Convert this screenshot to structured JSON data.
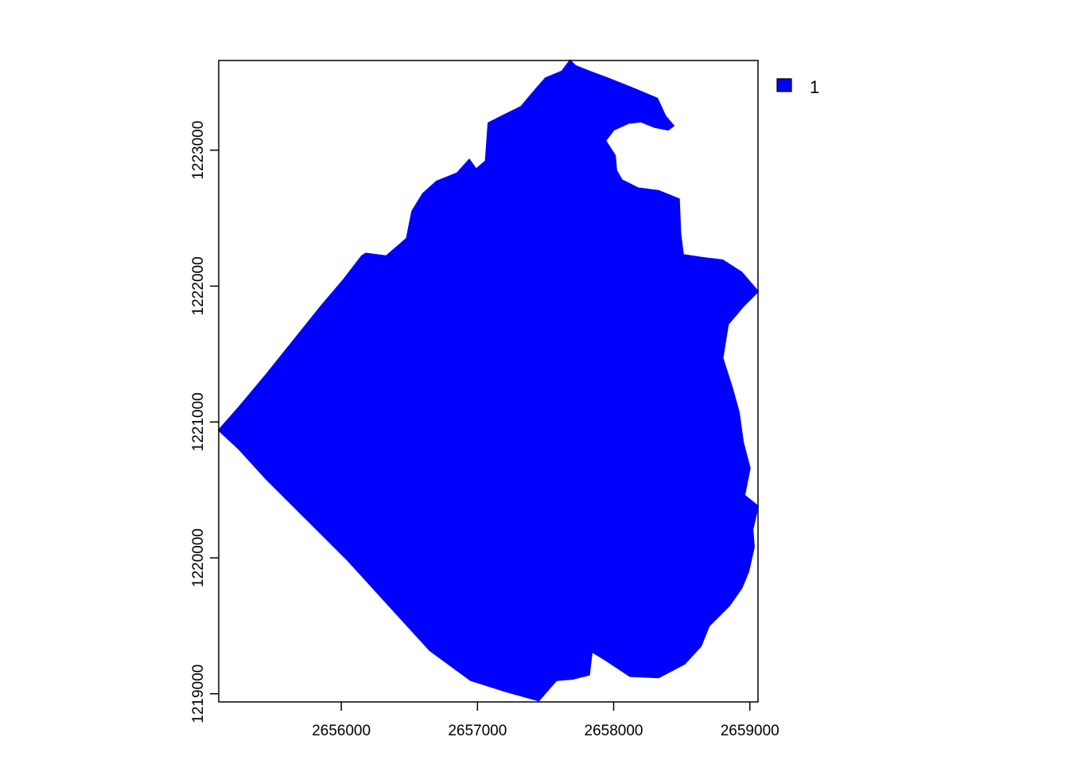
{
  "map": {
    "type": "raster",
    "raster_color": "#0000FF",
    "background_color": "#FFFFFF",
    "x_ticks": [
      "2656000",
      "2657000",
      "2658000",
      "2659000"
    ],
    "y_ticks": [
      "1219000",
      "1220000",
      "1221000",
      "1222000",
      "1223000"
    ],
    "x_range": [
      2655100,
      2659060
    ],
    "y_range": [
      1218940,
      1223660
    ],
    "legend": {
      "position": "top-right",
      "items": [
        {
          "label": "1",
          "color": "#0000FF"
        }
      ]
    },
    "outline": [
      [
        2655100,
        1220940
      ],
      [
        2655250,
        1221110
      ],
      [
        2655450,
        1221350
      ],
      [
        2655650,
        1221600
      ],
      [
        2655850,
        1221850
      ],
      [
        2656020,
        1222050
      ],
      [
        2656150,
        1222220
      ],
      [
        2656180,
        1222240
      ],
      [
        2656330,
        1222220
      ],
      [
        2656480,
        1222350
      ],
      [
        2656520,
        1222550
      ],
      [
        2656600,
        1222680
      ],
      [
        2656700,
        1222770
      ],
      [
        2656850,
        1222830
      ],
      [
        2656940,
        1222930
      ],
      [
        2656990,
        1222860
      ],
      [
        2657060,
        1222920
      ],
      [
        2657080,
        1223200
      ],
      [
        2657200,
        1223260
      ],
      [
        2657320,
        1223320
      ],
      [
        2657430,
        1223450
      ],
      [
        2657500,
        1223530
      ],
      [
        2657620,
        1223580
      ],
      [
        2657680,
        1223660
      ],
      [
        2657720,
        1223620
      ],
      [
        2657820,
        1223580
      ],
      [
        2657980,
        1223520
      ],
      [
        2658130,
        1223460
      ],
      [
        2658320,
        1223380
      ],
      [
        2658380,
        1223250
      ],
      [
        2658440,
        1223180
      ],
      [
        2658400,
        1223150
      ],
      [
        2658300,
        1223170
      ],
      [
        2658200,
        1223210
      ],
      [
        2658110,
        1223200
      ],
      [
        2658000,
        1223150
      ],
      [
        2657940,
        1223070
      ],
      [
        2658010,
        1222960
      ],
      [
        2658020,
        1222850
      ],
      [
        2658060,
        1222780
      ],
      [
        2658180,
        1222720
      ],
      [
        2658330,
        1222700
      ],
      [
        2658480,
        1222640
      ],
      [
        2658490,
        1222390
      ],
      [
        2658510,
        1222230
      ],
      [
        2658640,
        1222210
      ],
      [
        2658800,
        1222190
      ],
      [
        2658940,
        1222100
      ],
      [
        2659060,
        1221960
      ],
      [
        2658950,
        1221850
      ],
      [
        2658840,
        1221720
      ],
      [
        2658800,
        1221470
      ],
      [
        2658870,
        1221250
      ],
      [
        2658920,
        1221070
      ],
      [
        2658950,
        1220850
      ],
      [
        2659000,
        1220660
      ],
      [
        2658960,
        1220460
      ],
      [
        2659060,
        1220380
      ],
      [
        2659020,
        1220210
      ],
      [
        2659030,
        1220080
      ],
      [
        2658990,
        1219900
      ],
      [
        2658940,
        1219780
      ],
      [
        2658850,
        1219650
      ],
      [
        2658700,
        1219500
      ],
      [
        2658640,
        1219350
      ],
      [
        2658520,
        1219220
      ],
      [
        2658330,
        1219120
      ],
      [
        2658120,
        1219130
      ],
      [
        2657940,
        1219250
      ],
      [
        2657840,
        1219310
      ],
      [
        2657820,
        1219140
      ],
      [
        2657700,
        1219110
      ],
      [
        2657580,
        1219100
      ],
      [
        2657450,
        1218950
      ],
      [
        2657200,
        1219020
      ],
      [
        2656950,
        1219100
      ],
      [
        2656650,
        1219320
      ],
      [
        2656350,
        1219650
      ],
      [
        2656050,
        1219980
      ],
      [
        2655750,
        1220280
      ],
      [
        2655450,
        1220580
      ],
      [
        2655250,
        1220800
      ]
    ]
  }
}
